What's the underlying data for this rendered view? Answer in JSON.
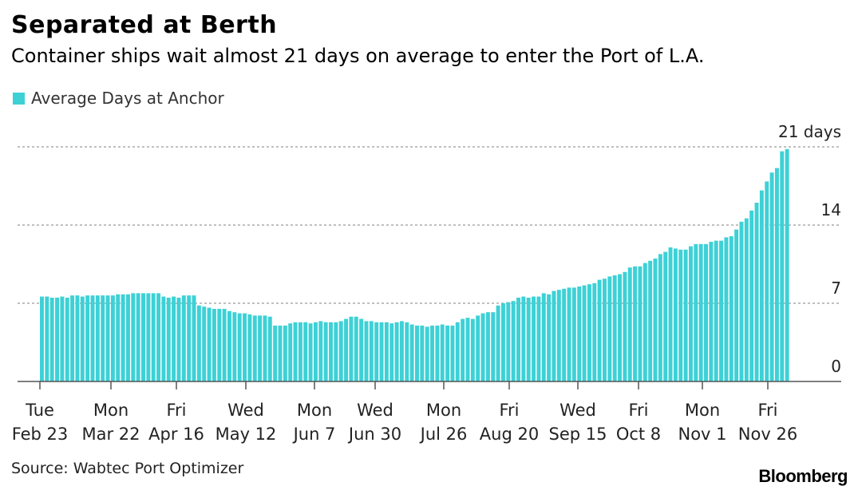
{
  "header": {
    "title": "Separated at Berth",
    "subtitle": "Container ships wait almost 21 days on average to enter the Port of L.A."
  },
  "legend": {
    "label": "Average Days at Anchor"
  },
  "footer": {
    "source": "Source: Wabtec Port Optimizer",
    "brand": "Bloomberg"
  },
  "colors": {
    "bar": "#3dd1d6",
    "grid": "#999999",
    "axis": "#555555"
  },
  "chart_data": {
    "type": "bar",
    "series": [
      {
        "name": "Average Days at Anchor",
        "values": [
          7.6,
          7.6,
          7.5,
          7.5,
          7.6,
          7.5,
          7.7,
          7.7,
          7.6,
          7.7,
          7.7,
          7.7,
          7.7,
          7.7,
          7.7,
          7.8,
          7.8,
          7.8,
          7.9,
          7.9,
          7.9,
          7.9,
          7.9,
          7.9,
          7.6,
          7.5,
          7.6,
          7.5,
          7.7,
          7.7,
          7.7,
          6.8,
          6.7,
          6.6,
          6.5,
          6.5,
          6.5,
          6.3,
          6.2,
          6.1,
          6.1,
          6.0,
          5.9,
          5.9,
          5.9,
          5.8,
          5.0,
          5.0,
          5.0,
          5.2,
          5.3,
          5.3,
          5.3,
          5.2,
          5.3,
          5.4,
          5.3,
          5.3,
          5.3,
          5.4,
          5.6,
          5.8,
          5.8,
          5.6,
          5.4,
          5.4,
          5.3,
          5.3,
          5.3,
          5.2,
          5.3,
          5.4,
          5.3,
          5.1,
          5.0,
          5.0,
          4.9,
          5.0,
          5.0,
          5.1,
          5.0,
          5.0,
          5.3,
          5.6,
          5.7,
          5.6,
          5.9,
          6.1,
          6.2,
          6.2,
          6.8,
          7.0,
          7.1,
          7.2,
          7.5,
          7.6,
          7.5,
          7.6,
          7.6,
          7.9,
          7.8,
          8.1,
          8.2,
          8.3,
          8.4,
          8.4,
          8.5,
          8.6,
          8.7,
          8.8,
          9.1,
          9.2,
          9.4,
          9.5,
          9.6,
          9.8,
          10.2,
          10.3,
          10.3,
          10.6,
          10.8,
          11.0,
          11.4,
          11.6,
          12.0,
          11.9,
          11.8,
          11.8,
          12.1,
          12.3,
          12.3,
          12.3,
          12.5,
          12.6,
          12.6,
          12.9,
          13.0,
          13.6,
          14.3,
          14.6,
          15.3,
          16.0,
          17.1,
          17.9,
          18.7,
          19.1,
          20.6,
          20.8
        ],
        "last_label": "21 days"
      }
    ],
    "ylim": [
      0,
      21
    ],
    "y_ticks": [
      0,
      7,
      14,
      21
    ],
    "y_tick_labels": [
      "0",
      "7",
      "14",
      "21 days"
    ],
    "x_ticks": [
      {
        "top": "Tue",
        "bottom": "Feb 23"
      },
      {
        "top": "Mon",
        "bottom": "Mar 22"
      },
      {
        "top": "Fri",
        "bottom": "Apr 16"
      },
      {
        "top": "Wed",
        "bottom": "May 12"
      },
      {
        "top": "Mon",
        "bottom": "Jun 7"
      },
      {
        "top": "Wed",
        "bottom": "Jun 30"
      },
      {
        "top": "Mon",
        "bottom": "Jul 26"
      },
      {
        "top": "Fri",
        "bottom": "Aug 20"
      },
      {
        "top": "Wed",
        "bottom": "Sep 15"
      },
      {
        "top": "Fri",
        "bottom": "Oct 8"
      },
      {
        "top": "Mon",
        "bottom": "Nov 1"
      },
      {
        "top": "Fri",
        "bottom": "Nov 26"
      }
    ],
    "grid": true,
    "legend_position": "top-left"
  }
}
